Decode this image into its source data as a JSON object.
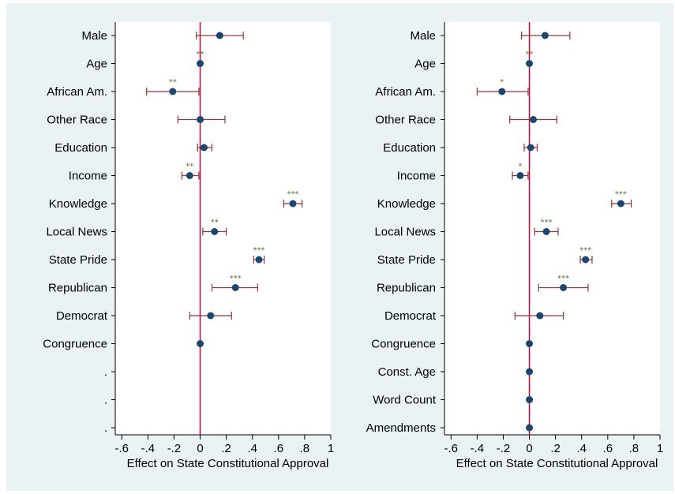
{
  "chart_data": [
    {
      "type": "scatter",
      "xlabel": "Effect on State Constitutional Approval",
      "xticks": [
        "-.6",
        "-.4",
        "-.2",
        "0",
        ".2",
        ".4",
        ".6",
        ".8",
        "1"
      ],
      "xlim": [
        -0.65,
        1.0
      ],
      "reference_line_x": 0,
      "rows": [
        {
          "label": "Male",
          "est": 0.15,
          "lo": -0.03,
          "hi": 0.33,
          "sig": ""
        },
        {
          "label": "Age",
          "est": 0.0,
          "lo": 0.0,
          "hi": 0.0,
          "sig": "**"
        },
        {
          "label": "African Am.",
          "est": -0.21,
          "lo": -0.41,
          "hi": -0.01,
          "sig": "**"
        },
        {
          "label": "Other Race",
          "est": 0.0,
          "lo": -0.17,
          "hi": 0.19,
          "sig": ""
        },
        {
          "label": "Education",
          "est": 0.03,
          "lo": -0.02,
          "hi": 0.09,
          "sig": ""
        },
        {
          "label": "Income",
          "est": -0.08,
          "lo": -0.14,
          "hi": -0.01,
          "sig": "**"
        },
        {
          "label": "Knowledge",
          "est": 0.71,
          "lo": 0.64,
          "hi": 0.78,
          "sig": "***"
        },
        {
          "label": "Local News",
          "est": 0.11,
          "lo": 0.02,
          "hi": 0.2,
          "sig": "**"
        },
        {
          "label": "State Pride",
          "est": 0.45,
          "lo": 0.41,
          "hi": 0.49,
          "sig": "***"
        },
        {
          "label": "Republican",
          "est": 0.27,
          "lo": 0.09,
          "hi": 0.44,
          "sig": "***"
        },
        {
          "label": "Democrat",
          "est": 0.08,
          "lo": -0.08,
          "hi": 0.24,
          "sig": ""
        },
        {
          "label": "Congruence",
          "est": 0.0,
          "lo": 0.0,
          "hi": 0.0,
          "sig": ""
        },
        {
          "label": ".",
          "est": null,
          "lo": null,
          "hi": null,
          "sig": ""
        },
        {
          "label": ".",
          "est": null,
          "lo": null,
          "hi": null,
          "sig": ""
        },
        {
          "label": ".",
          "est": null,
          "lo": null,
          "hi": null,
          "sig": ""
        }
      ]
    },
    {
      "type": "scatter",
      "xlabel": "Effect on State Constitutional Approval",
      "xticks": [
        "-.6",
        "-.4",
        "-.2",
        "0",
        ".2",
        ".4",
        ".6",
        ".8",
        "1"
      ],
      "xlim": [
        -0.65,
        1.0
      ],
      "reference_line_x": 0,
      "rows": [
        {
          "label": "Male",
          "est": 0.12,
          "lo": -0.06,
          "hi": 0.31,
          "sig": ""
        },
        {
          "label": "Age",
          "est": 0.0,
          "lo": 0.0,
          "hi": 0.0,
          "sig": "**"
        },
        {
          "label": "African Am.",
          "est": -0.21,
          "lo": -0.4,
          "hi": -0.01,
          "sig": "*"
        },
        {
          "label": "Other Race",
          "est": 0.03,
          "lo": -0.15,
          "hi": 0.21,
          "sig": ""
        },
        {
          "label": "Education",
          "est": 0.01,
          "lo": -0.04,
          "hi": 0.06,
          "sig": ""
        },
        {
          "label": "Income",
          "est": -0.07,
          "lo": -0.13,
          "hi": -0.01,
          "sig": "*"
        },
        {
          "label": "Knowledge",
          "est": 0.7,
          "lo": 0.63,
          "hi": 0.78,
          "sig": "***"
        },
        {
          "label": "Local News",
          "est": 0.13,
          "lo": 0.04,
          "hi": 0.22,
          "sig": "***"
        },
        {
          "label": "State Pride",
          "est": 0.43,
          "lo": 0.39,
          "hi": 0.48,
          "sig": "***"
        },
        {
          "label": "Republican",
          "est": 0.26,
          "lo": 0.07,
          "hi": 0.45,
          "sig": "***"
        },
        {
          "label": "Democrat",
          "est": 0.08,
          "lo": -0.11,
          "hi": 0.26,
          "sig": ""
        },
        {
          "label": "Congruence",
          "est": 0.0,
          "lo": 0.0,
          "hi": 0.0,
          "sig": ""
        },
        {
          "label": "Const. Age",
          "est": 0.0,
          "lo": 0.0,
          "hi": 0.0,
          "sig": ""
        },
        {
          "label": "Word Count",
          "est": 0.0,
          "lo": 0.0,
          "hi": 0.0,
          "sig": ""
        },
        {
          "label": "Amendments",
          "est": 0.0,
          "lo": 0.0,
          "hi": 0.0,
          "sig": ""
        }
      ]
    }
  ],
  "colors": {
    "background": "#eaf2f3",
    "plot_bg": "#ffffff",
    "marker": "#1a476f",
    "ci": "#90353b",
    "ref_line": "#c10534",
    "stars": "#55752f"
  }
}
